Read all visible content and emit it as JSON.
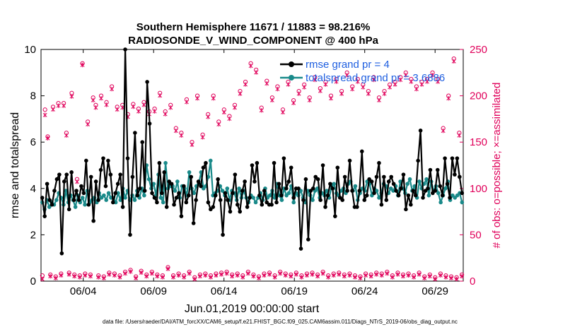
{
  "chart_data": {
    "type": "line",
    "title": [
      "Southern Hemisphere 11671 / 11883 = 98.216%",
      "RADIOSONDE_V_WIND_COMPONENT @ 400 hPa"
    ],
    "xlabel": "Jun.01,2019 00:00:00 start",
    "ylabel": "rmse and totalspread",
    "y2label": "# of obs: o=possible; ×=assimilated",
    "footnote": "data file: /Users/raeder/DAI/ATM_forcXX/CAM6_setup/f.e21.FHIST_BGC.f09_025.CAM6assim.011/Diags_NTrS_2019-06/obs_diag_output.nc",
    "x_ticks": [
      {
        "day": 4,
        "label": "06/04"
      },
      {
        "day": 9,
        "label": "06/09"
      },
      {
        "day": 14,
        "label": "06/14"
      },
      {
        "day": 19,
        "label": "06/19"
      },
      {
        "day": 24,
        "label": "06/24"
      },
      {
        "day": 29,
        "label": "06/29"
      }
    ],
    "xlim": [
      1,
      31
    ],
    "ylim": [
      0,
      10
    ],
    "y_ticks": [
      "0",
      "2",
      "4",
      "6",
      "8",
      "10"
    ],
    "y2lim": [
      0,
      250
    ],
    "y2_ticks": [
      "0",
      "50",
      "100",
      "150",
      "200",
      "250"
    ],
    "colors": {
      "rmse": "#000000",
      "spread": "#1a8a8a",
      "obs": "#e0005a",
      "legend_text": "#1f5fe0"
    },
    "series": [
      {
        "name": "rmse grand pr = 4",
        "key": "rmse",
        "values": [
          3.6,
          2.8,
          4.2,
          3.5,
          3.3,
          3.9,
          4.4,
          4.6,
          1.2,
          4.3,
          4.6,
          3.1,
          4.7,
          3.5,
          3.9,
          3.5,
          4.1,
          3.8,
          5.2,
          3.3,
          4.5,
          2.6,
          4.3,
          3.5,
          4.8,
          5.3,
          4.1,
          5.2,
          4.6,
          3.4,
          3.8,
          4.2,
          4.6,
          3.2,
          10.0,
          5.3,
          2.0,
          4.5,
          6.4,
          3.7,
          4.0,
          6.0,
          3.9,
          8.6,
          6.8,
          3.8,
          3.6,
          3.4,
          5.1,
          3.8,
          4.7,
          3.2,
          4.3,
          4.2,
          3.3,
          3.6,
          3.8,
          2.8,
          4.1,
          3.4,
          3.7,
          4.5,
          2.5,
          3.5,
          4.3,
          4.1,
          4.9,
          5.1,
          3.4,
          3.1,
          3.2,
          3.7,
          4.4,
          3.5,
          2.0,
          3.8,
          3.5,
          3.0,
          3.8,
          4.6,
          3.3,
          3.0,
          3.9,
          4.3,
          3.2,
          3.6,
          5.0,
          4.3,
          5.1,
          3.7,
          3.3,
          3.9,
          3.4,
          3.3,
          3.3,
          5.1,
          3.4,
          4.2,
          3.7,
          5.3,
          4.0,
          4.3,
          4.9,
          3.6,
          4.0,
          4.0,
          1.4,
          3.5,
          4.4,
          1.8,
          3.9,
          4.0,
          4.5,
          4.4,
          3.5,
          5.0,
          3.2,
          3.7,
          4.2,
          4.0,
          2.8,
          4.9,
          3.6,
          3.5,
          4.5,
          3.9,
          5.2,
          3.9,
          3.2,
          3.2,
          3.9,
          5.6,
          3.5,
          3.7,
          4.4,
          4.3,
          3.8,
          4.5,
          5.1,
          3.3,
          4.5,
          3.5,
          4.3,
          4.5,
          4.2,
          3.9,
          3.7,
          4.0,
          4.6,
          3.1,
          3.7,
          3.3,
          3.9,
          3.7,
          5.2,
          6.5,
          3.6,
          3.9,
          4.0,
          4.8,
          3.8,
          3.9,
          4.8,
          4.1,
          3.7,
          5.3,
          4.2,
          3.6,
          5.3,
          4.6,
          5.3,
          4.5,
          3.8
        ]
      },
      {
        "name": "totalspread grand pr = 3.6886",
        "key": "spread",
        "values": [
          3.4,
          3.1,
          3.5,
          3.2,
          3.4,
          3.3,
          3.5,
          3.8,
          3.6,
          3.3,
          3.9,
          3.4,
          3.7,
          3.5,
          3.2,
          3.7,
          3.4,
          3.6,
          3.3,
          3.9,
          3.4,
          3.5,
          3.6,
          3.4,
          3.8,
          3.6,
          3.7,
          3.5,
          3.8,
          3.6,
          3.6,
          3.4,
          3.8,
          3.5,
          4.0,
          3.6,
          3.9,
          3.5,
          3.7,
          3.5,
          3.9,
          3.6,
          4.0,
          3.7,
          5.0,
          4.4,
          4.0,
          4.2,
          3.7,
          4.6,
          3.6,
          3.4,
          5.1,
          4.0,
          4.1,
          4.1,
          3.9,
          4.3,
          3.6,
          4.1,
          4.0,
          3.7,
          4.7,
          4.0,
          3.8,
          4.1,
          4.2,
          4.7,
          4.0,
          4.1,
          4.5,
          5.2,
          3.7,
          3.8,
          3.9,
          4.1,
          3.9,
          3.7,
          4.0,
          3.5,
          3.9,
          3.8,
          3.5,
          4.0,
          3.6,
          3.9,
          3.6,
          3.4,
          3.7,
          3.6,
          3.4,
          3.6,
          3.8,
          3.5,
          4.0,
          3.6,
          3.7,
          3.9,
          3.6,
          4.2,
          3.7,
          3.5,
          4.0,
          3.7,
          3.8,
          4.1,
          3.4,
          3.8,
          3.7,
          3.9,
          3.6,
          3.4,
          3.9,
          3.7,
          3.5,
          3.9,
          4.0,
          3.6,
          3.8,
          3.7,
          3.9,
          3.6,
          4.1,
          4.2,
          3.8,
          3.7,
          3.9,
          4.0,
          3.8,
          4.2,
          4.3,
          3.9,
          4.1,
          3.5,
          3.8,
          4.0,
          3.9,
          4.3,
          4.2,
          3.7,
          4.0,
          3.9,
          3.6,
          3.8,
          4.2,
          4.1,
          3.8,
          4.0,
          3.9,
          4.1,
          3.7,
          4.3,
          4.0,
          3.8,
          4.2,
          4.4,
          3.9,
          4.1,
          3.6,
          4.3,
          4.0,
          4.2,
          4.4,
          3.7,
          4.3,
          3.9,
          4.1,
          3.8,
          3.4,
          3.7,
          4.0,
          4.3,
          3.5,
          3.7,
          3.6,
          3.7,
          3.8,
          3.4
        ]
      },
      {
        "name": "# of obs possible",
        "key": "possible",
        "values": [
          6,
          185,
          156,
          7,
          188,
          5,
          192,
          8,
          192,
          160,
          9,
          203,
          7,
          110,
          6,
          235,
          8,
          172,
          7,
          198,
          190,
          6,
          200,
          5,
          193,
          9,
          210,
          8,
          188,
          6,
          190,
          10,
          180,
          12,
          191,
          5,
          186,
          11,
          193,
          7,
          183,
          10,
          186,
          7,
          203,
          6,
          183,
          15,
          190,
          6,
          165,
          8,
          160,
          6,
          196,
          10,
          150,
          4,
          200,
          7,
          158,
          8,
          180,
          6,
          200,
          8,
          172,
          9,
          185,
          10,
          178,
          7,
          190,
          8,
          205,
          6,
          215,
          10,
          235,
          7,
          228,
          5,
          187,
          8,
          216,
          9,
          198,
          6,
          210,
          10,
          185,
          8,
          215,
          7,
          195,
          9,
          205,
          6,
          212,
          8,
          198,
          9,
          220,
          7,
          208,
          10,
          215,
          6,
          200,
          8,
          218,
          9,
          205,
          7,
          225,
          8,
          210,
          6,
          218,
          5,
          212,
          8,
          205,
          7,
          220,
          9,
          198,
          8,
          205,
          10,
          212,
          6,
          215,
          9,
          220,
          7,
          225,
          8,
          218,
          6,
          210,
          9,
          215,
          5,
          218,
          7,
          225,
          4,
          218,
          8,
          165,
          6,
          200,
          5,
          240,
          4,
          160,
          7
        ]
      },
      {
        "name": "# of obs assimilated",
        "key": "assimilated",
        "values": [
          3,
          180,
          155,
          6,
          186,
          4,
          190,
          7,
          190,
          158,
          8,
          200,
          6,
          108,
          5,
          234,
          7,
          170,
          6,
          196,
          188,
          5,
          198,
          4,
          191,
          8,
          208,
          7,
          186,
          5,
          188,
          9,
          178,
          11,
          189,
          4,
          184,
          10,
          191,
          6,
          181,
          9,
          184,
          6,
          201,
          5,
          181,
          14,
          188,
          5,
          163,
          7,
          158,
          5,
          194,
          9,
          148,
          3,
          198,
          6,
          156,
          7,
          178,
          5,
          198,
          7,
          170,
          8,
          183,
          9,
          176,
          6,
          188,
          7,
          203,
          5,
          213,
          9,
          233,
          6,
          226,
          4,
          185,
          7,
          214,
          8,
          196,
          5,
          208,
          9,
          183,
          7,
          213,
          6,
          193,
          8,
          203,
          5,
          210,
          7,
          196,
          8,
          218,
          6,
          206,
          9,
          213,
          5,
          198,
          7,
          216,
          8,
          203,
          6,
          223,
          7,
          208,
          5,
          216,
          4,
          210,
          7,
          203,
          6,
          218,
          8,
          196,
          7,
          203,
          9,
          210,
          5,
          213,
          8,
          218,
          6,
          223,
          7,
          216,
          5,
          208,
          8,
          213,
          4,
          216,
          6,
          223,
          3,
          216,
          7,
          163,
          5,
          198,
          4,
          238,
          3,
          158,
          6
        ]
      }
    ]
  }
}
